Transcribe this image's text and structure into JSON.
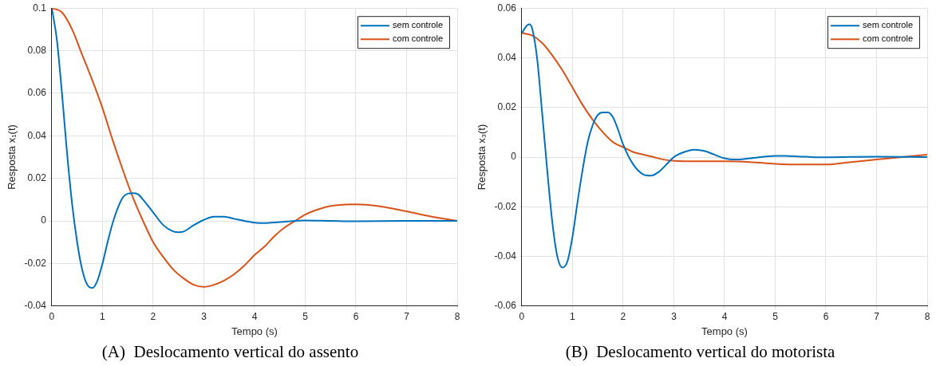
{
  "chart_data": [
    {
      "type": "line",
      "title": "(A)  Deslocamento vertical do assento",
      "xlabel": "Tempo (s)",
      "ylabel": "Resposta x₁(t)",
      "xlim": [
        0,
        8
      ],
      "xticks": [
        0,
        1,
        2,
        3,
        4,
        5,
        6,
        7,
        8
      ],
      "ylim": [
        -0.04,
        0.1
      ],
      "yticks": [
        -0.04,
        -0.02,
        0,
        0.02,
        0.04,
        0.06,
        0.08,
        0.1
      ],
      "grid": true,
      "legend": "top right",
      "marker": "none",
      "line_style": "solid",
      "series": [
        {
          "name": "sem controle",
          "color": "#0072bd",
          "x": [
            0,
            0.1,
            0.2,
            0.3,
            0.4,
            0.5,
            0.6,
            0.7,
            0.8,
            0.9,
            1.0,
            1.1,
            1.2,
            1.3,
            1.4,
            1.5,
            1.6,
            1.7,
            1.8,
            2.0,
            2.2,
            2.4,
            2.5,
            2.6,
            2.8,
            3.0,
            3.2,
            3.4,
            3.6,
            3.8,
            4.0,
            4.2,
            4.5,
            5.0,
            5.5,
            6.0,
            7.0,
            8.0
          ],
          "values": [
            0.1,
            0.085,
            0.06,
            0.032,
            0.008,
            -0.01,
            -0.023,
            -0.03,
            -0.0315,
            -0.028,
            -0.02,
            -0.01,
            -0.001,
            0.006,
            0.011,
            0.0128,
            0.013,
            0.0125,
            0.01,
            0.004,
            -0.002,
            -0.005,
            -0.0053,
            -0.005,
            -0.002,
            0.0005,
            0.002,
            0.002,
            0.001,
            0,
            -0.0008,
            -0.001,
            -0.0005,
            0.0002,
            0,
            -0.0002,
            0,
            0
          ]
        },
        {
          "name": "com controle",
          "color": "#d95319",
          "x": [
            0,
            0.2,
            0.4,
            0.6,
            0.8,
            1.0,
            1.2,
            1.4,
            1.6,
            1.8,
            2.0,
            2.2,
            2.4,
            2.6,
            2.8,
            3.0,
            3.2,
            3.4,
            3.6,
            3.8,
            4.0,
            4.2,
            4.4,
            4.6,
            4.8,
            5.0,
            5.2,
            5.4,
            5.6,
            5.8,
            6.0,
            6.2,
            6.5,
            7.0,
            7.5,
            8.0
          ],
          "values": [
            0.1,
            0.098,
            0.09,
            0.078,
            0.066,
            0.053,
            0.038,
            0.024,
            0.011,
            0,
            -0.01,
            -0.017,
            -0.023,
            -0.027,
            -0.03,
            -0.031,
            -0.03,
            -0.028,
            -0.025,
            -0.021,
            -0.016,
            -0.012,
            -0.007,
            -0.003,
            0,
            0.003,
            0.005,
            0.0065,
            0.0073,
            0.0077,
            0.0078,
            0.0076,
            0.0068,
            0.0045,
            0.002,
            0
          ]
        }
      ]
    },
    {
      "type": "line",
      "title": "(B)  Deslocamento vertical do motorista",
      "xlabel": "Tempo (s)",
      "ylabel": "Resposta x₃(t)",
      "xlim": [
        0,
        8
      ],
      "xticks": [
        0,
        1,
        2,
        3,
        4,
        5,
        6,
        7,
        8
      ],
      "ylim": [
        -0.06,
        0.06
      ],
      "yticks": [
        -0.06,
        -0.04,
        -0.02,
        0,
        0.02,
        0.04,
        0.06
      ],
      "grid": true,
      "legend": "top right",
      "marker": "none",
      "line_style": "solid",
      "series": [
        {
          "name": "sem controle",
          "color": "#0072bd",
          "x": [
            0,
            0.1,
            0.15,
            0.2,
            0.3,
            0.4,
            0.5,
            0.6,
            0.7,
            0.8,
            0.9,
            1.0,
            1.1,
            1.2,
            1.3,
            1.4,
            1.5,
            1.6,
            1.7,
            1.8,
            1.9,
            2.0,
            2.2,
            2.4,
            2.55,
            2.7,
            2.9,
            3.0,
            3.2,
            3.4,
            3.6,
            3.8,
            4.0,
            4.2,
            4.5,
            5.0,
            5.2,
            5.5,
            6.0,
            7.0,
            8.0
          ],
          "values": [
            0.05,
            0.053,
            0.0535,
            0.052,
            0.04,
            0.018,
            -0.005,
            -0.026,
            -0.04,
            -0.0445,
            -0.042,
            -0.032,
            -0.018,
            -0.005,
            0.006,
            0.013,
            0.017,
            0.018,
            0.018,
            0.016,
            0.011,
            0.005,
            -0.003,
            -0.007,
            -0.0075,
            -0.006,
            -0.002,
            0,
            0.002,
            0.003,
            0.0025,
            0.001,
            -0.0005,
            -0.001,
            -0.0005,
            0.0005,
            0.0005,
            0.0002,
            -0.0001,
            0.0002,
            0
          ]
        },
        {
          "name": "com controle",
          "color": "#d95319",
          "x": [
            0,
            0.2,
            0.4,
            0.6,
            0.8,
            1.0,
            1.2,
            1.4,
            1.6,
            1.8,
            2.0,
            2.2,
            2.4,
            2.6,
            2.8,
            3.0,
            3.5,
            4.0,
            4.5,
            5.0,
            5.5,
            6.0,
            6.5,
            7.0,
            7.5,
            8.0
          ],
          "values": [
            0.05,
            0.049,
            0.046,
            0.041,
            0.035,
            0.028,
            0.021,
            0.015,
            0.01,
            0.006,
            0.004,
            0.002,
            0.001,
            0,
            -0.001,
            -0.0015,
            -0.0017,
            -0.0017,
            -0.002,
            -0.0027,
            -0.003,
            -0.003,
            -0.002,
            -0.001,
            0,
            0.001
          ]
        }
      ]
    }
  ]
}
